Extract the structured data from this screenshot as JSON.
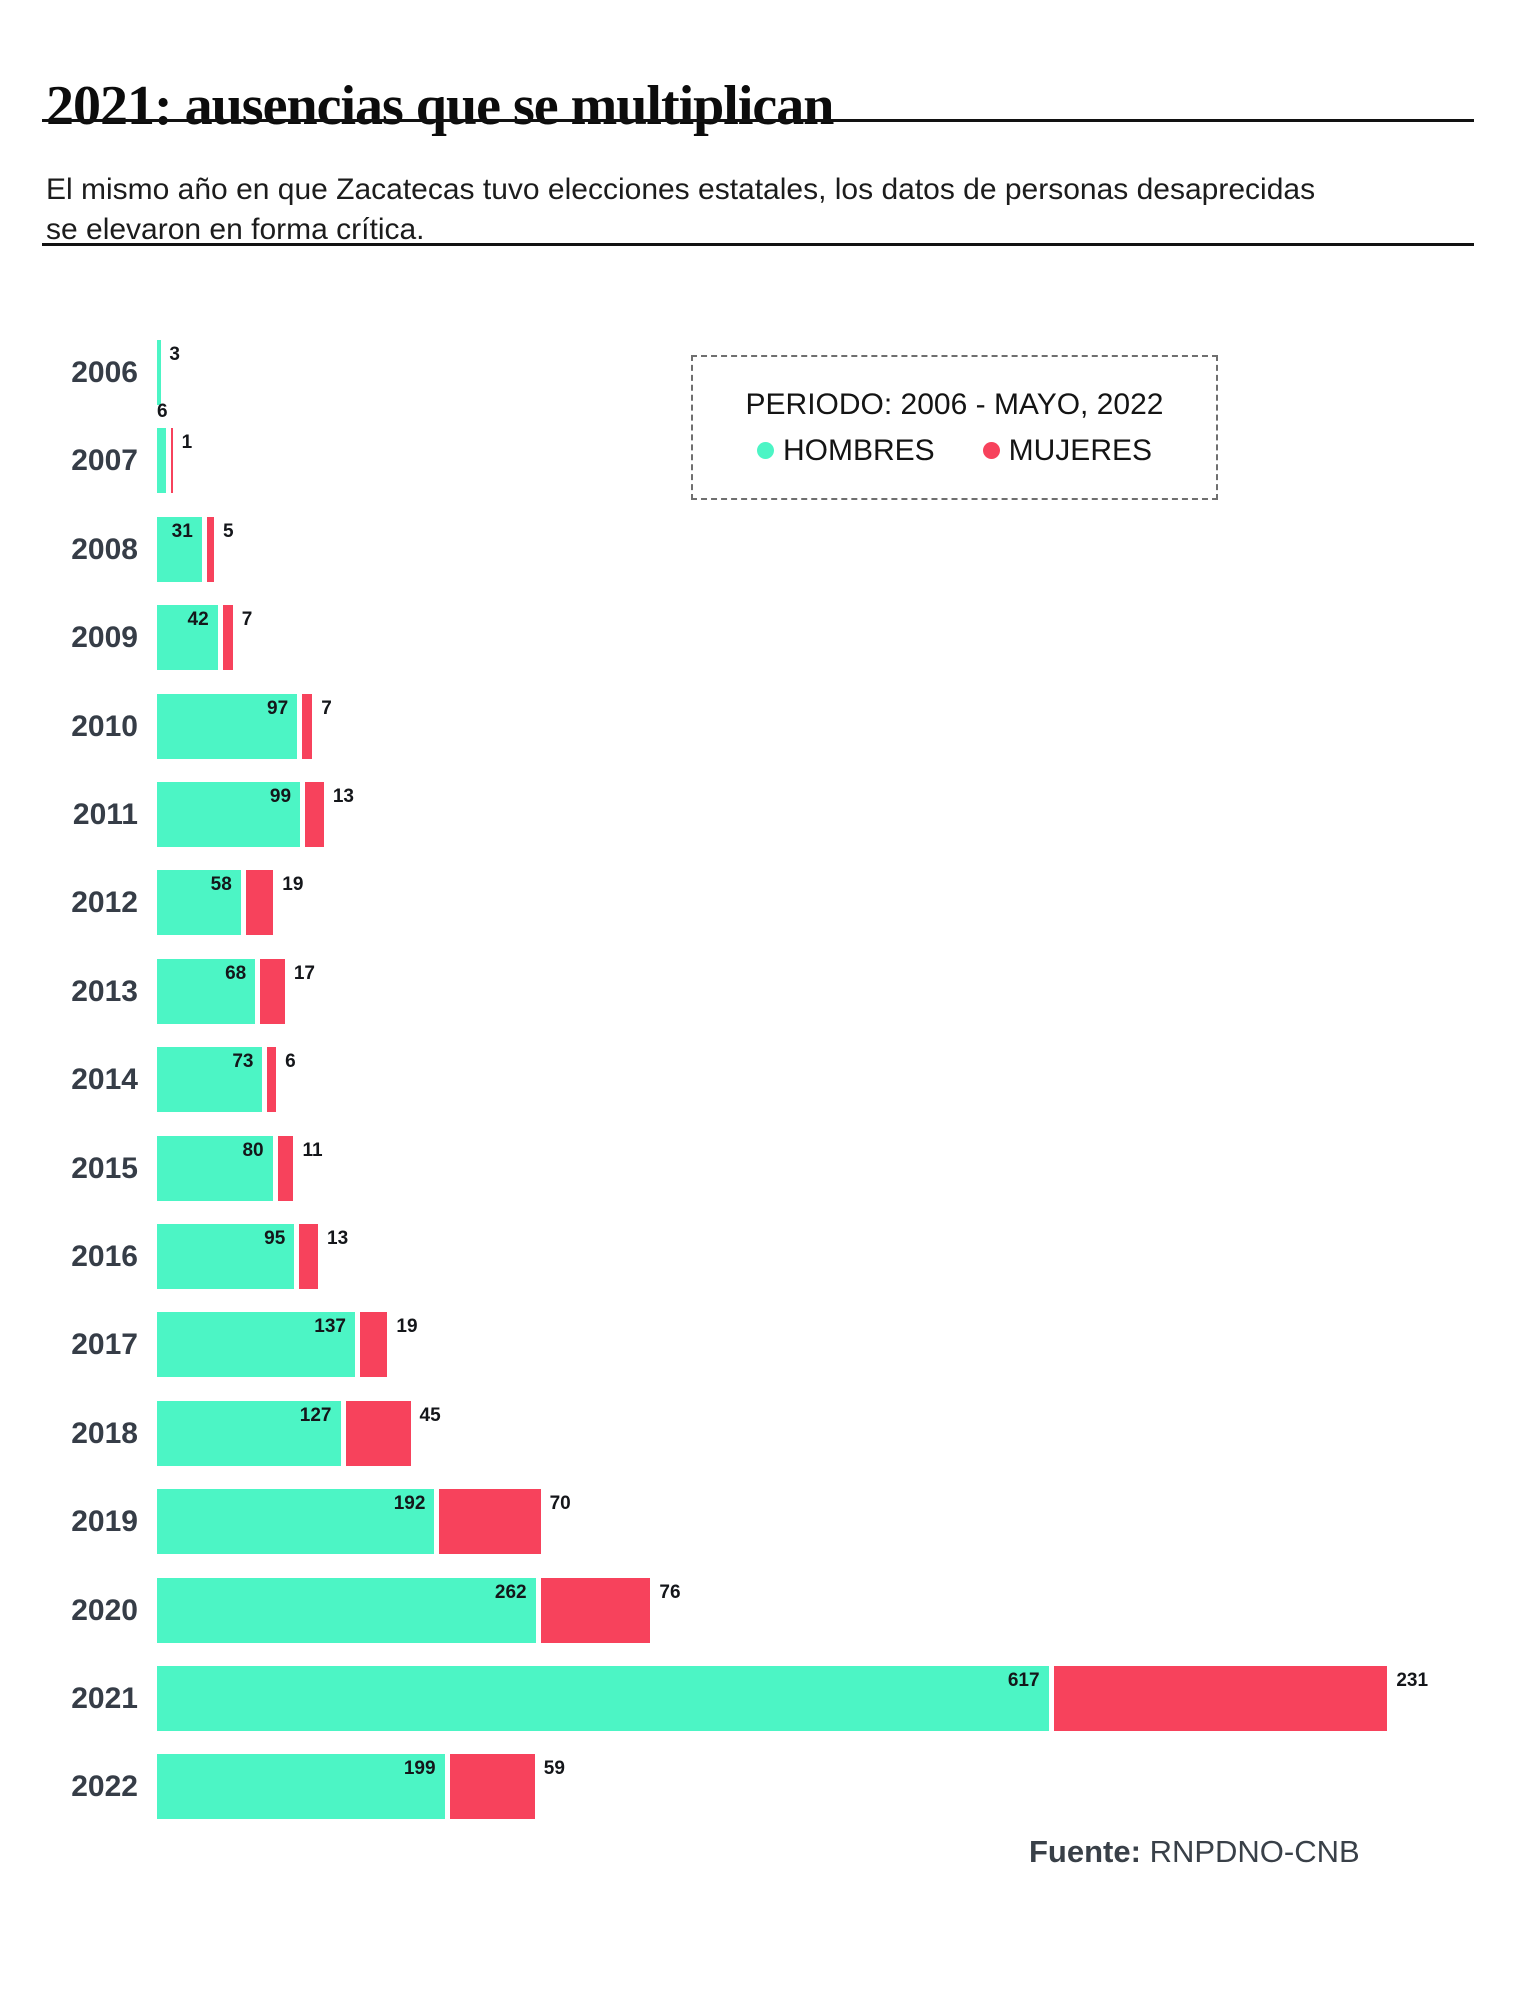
{
  "header": {
    "title": "2021: ausencias que se multiplican",
    "subtitle": "El mismo año en que Zacatecas tuvo elecciones estatales, los datos de personas desaprecidas\nse elevaron en forma crítica."
  },
  "legend": {
    "period_label": "PERIODO: 2006 - MAYO, 2022",
    "series": [
      {
        "label": "HOMBRES",
        "color": "#4CF5C5"
      },
      {
        "label": "MUJERES",
        "color": "#F7425C"
      }
    ]
  },
  "footer": {
    "source_label": "Fuente:",
    "source_value": "RNPDNO-CNB"
  },
  "chart_data": {
    "type": "bar",
    "orientation": "horizontal",
    "title": "2021: ausencias que se multiplican",
    "period_note": "PERIODO: 2006 - MAYO, 2022",
    "categories": [
      "2006",
      "2007",
      "2008",
      "2009",
      "2010",
      "2011",
      "2012",
      "2013",
      "2014",
      "2015",
      "2016",
      "2017",
      "2018",
      "2019",
      "2020",
      "2021",
      "2022"
    ],
    "series": [
      {
        "name": "HOMBRES",
        "color": "#4CF5C5",
        "values": [
          3,
          6,
          31,
          42,
          97,
          99,
          58,
          68,
          73,
          80,
          95,
          137,
          127,
          192,
          262,
          617,
          199
        ]
      },
      {
        "name": "MUJERES",
        "color": "#F7425C",
        "values": [
          0,
          1,
          5,
          7,
          7,
          13,
          19,
          17,
          6,
          11,
          13,
          19,
          45,
          70,
          76,
          231,
          59
        ]
      }
    ],
    "value_labels": true,
    "legend_position": "top-right",
    "grid": false,
    "xlabel": "",
    "ylabel": ""
  }
}
